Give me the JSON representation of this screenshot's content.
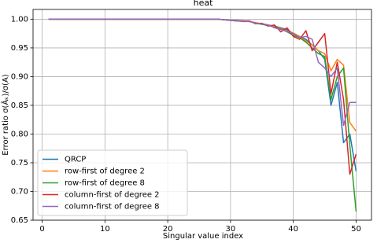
{
  "chart_data": {
    "type": "line",
    "title": "heat",
    "xlabel": "Singular value index",
    "ylabel": "Error ratio σ(Âₖ)/σ(A)",
    "x": [
      1,
      2,
      3,
      4,
      5,
      6,
      7,
      8,
      9,
      10,
      11,
      12,
      13,
      14,
      15,
      16,
      17,
      18,
      19,
      20,
      21,
      22,
      23,
      24,
      25,
      26,
      27,
      28,
      29,
      30,
      31,
      32,
      33,
      34,
      35,
      36,
      37,
      38,
      39,
      40,
      41,
      42,
      43,
      44,
      45,
      46,
      47,
      48,
      49,
      50
    ],
    "series": [
      {
        "name": "QRCP",
        "color": "#1f77b4",
        "values": [
          1,
          1,
          1,
          1,
          1,
          1,
          1,
          1,
          1,
          1,
          1,
          1,
          1,
          1,
          1,
          1,
          1,
          1,
          1,
          1,
          1,
          1,
          1,
          1,
          1,
          1,
          1,
          1,
          0.999,
          0.998,
          0.997,
          0.997,
          0.996,
          0.993,
          0.992,
          0.99,
          0.988,
          0.985,
          0.982,
          0.975,
          0.97,
          0.965,
          0.955,
          0.945,
          0.93,
          0.85,
          0.89,
          0.785,
          0.8,
          0.735
        ]
      },
      {
        "name": "row-first of degree 2",
        "color": "#ff7f0e",
        "values": [
          1,
          1,
          1,
          1,
          1,
          1,
          1,
          1,
          1,
          1,
          1,
          1,
          1,
          1,
          1,
          1,
          1,
          1,
          1,
          1,
          1,
          1,
          1,
          1,
          1,
          1,
          1,
          1,
          0.999,
          0.998,
          0.997,
          0.997,
          0.996,
          0.994,
          0.992,
          0.99,
          0.987,
          0.984,
          0.98,
          0.976,
          0.97,
          0.962,
          0.955,
          0.945,
          0.94,
          0.91,
          0.93,
          0.92,
          0.82,
          0.805
        ]
      },
      {
        "name": "row-first of degree 8",
        "color": "#2ca02c",
        "values": [
          1,
          1,
          1,
          1,
          1,
          1,
          1,
          1,
          1,
          1,
          1,
          1,
          1,
          1,
          1,
          1,
          1,
          1,
          1,
          1,
          1,
          1,
          1,
          1,
          1,
          1,
          1,
          1,
          0.999,
          0.998,
          0.998,
          0.997,
          0.996,
          0.993,
          0.991,
          0.989,
          0.986,
          0.983,
          0.978,
          0.972,
          0.968,
          0.96,
          0.95,
          0.94,
          0.935,
          0.86,
          0.9,
          0.915,
          0.78,
          0.665
        ]
      },
      {
        "name": "column-first of degree 2",
        "color": "#d62728",
        "values": [
          1,
          1,
          1,
          1,
          1,
          1,
          1,
          1,
          1,
          1,
          1,
          1,
          1,
          1,
          1,
          1,
          1,
          1,
          1,
          1,
          1,
          1,
          1,
          1,
          1,
          1,
          1,
          1,
          0.999,
          0.998,
          0.997,
          0.997,
          0.997,
          0.992,
          0.993,
          0.988,
          0.99,
          0.978,
          0.985,
          0.97,
          0.965,
          0.98,
          0.945,
          0.96,
          0.975,
          0.87,
          0.925,
          0.86,
          0.73,
          0.765
        ]
      },
      {
        "name": "column-first of degree 8",
        "color": "#9467bd",
        "values": [
          1,
          1,
          1,
          1,
          1,
          1,
          1,
          1,
          1,
          1,
          1,
          1,
          1,
          1,
          1,
          1,
          1,
          1,
          1,
          1,
          1,
          1,
          1,
          1,
          1,
          1,
          1,
          1,
          0.999,
          0.998,
          0.997,
          0.996,
          0.996,
          0.993,
          0.992,
          0.99,
          0.985,
          0.982,
          0.979,
          0.975,
          0.968,
          0.97,
          0.965,
          0.925,
          0.915,
          0.9,
          0.915,
          0.815,
          0.855,
          0.855
        ]
      }
    ],
    "xlim": [
      -1.45,
      52.45
    ],
    "ylim": [
      0.65,
      1.017
    ],
    "xticks": [
      0,
      10,
      20,
      30,
      40,
      50
    ],
    "yticks": [
      0.65,
      {
        "value": 0.7,
        "label": "0.70"
      },
      0.75,
      {
        "value": 0.8,
        "label": "0.80"
      },
      0.85,
      {
        "value": 0.9,
        "label": "0.90"
      },
      0.95,
      {
        "value": 1.0,
        "label": "1.00"
      }
    ],
    "grid": true,
    "legend": "lower left"
  }
}
